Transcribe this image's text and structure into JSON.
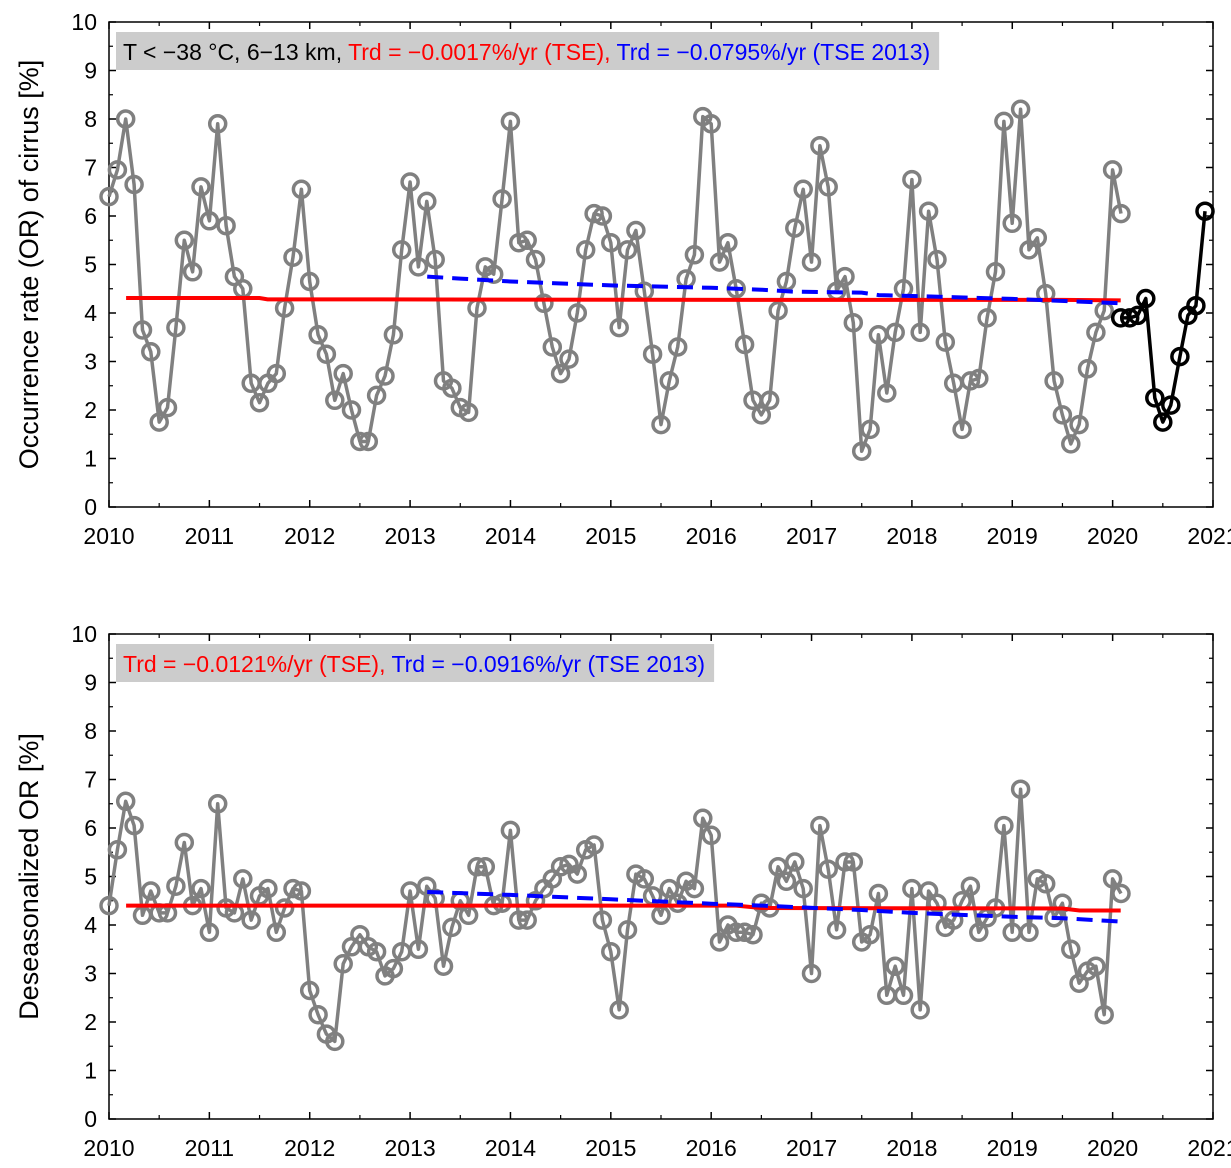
{
  "colors": {
    "observed": "#808080",
    "observed_2020": "#000000",
    "trend_tse": "#ff0000",
    "trend_tse2013": "#0000ff",
    "annotation_box": "#cccccc"
  },
  "chart_data": [
    {
      "type": "line",
      "ylabel": "Occurrence rate (OR) of cirrus [%]",
      "xlim": [
        2010,
        2021
      ],
      "ylim": [
        0,
        10
      ],
      "xticks": [
        "2010",
        "2011",
        "2012",
        "2013",
        "2014",
        "2015",
        "2016",
        "2017",
        "2018",
        "2019",
        "2020",
        "2021"
      ],
      "yticks": [
        "0",
        "1",
        "2",
        "3",
        "4",
        "5",
        "6",
        "7",
        "8",
        "9",
        "10"
      ],
      "annotation": {
        "prefix": "T < −38 °C, 6−13 km,",
        "trend_tse": "Trd = −0.0017%/yr (TSE),",
        "trend_tse2013": "Trd = −0.0795%/yr (TSE 2013)"
      },
      "grid": false,
      "series": [
        {
          "role": "observed",
          "x_start": 2010.0,
          "x_step": 0.08333,
          "values": [
            6.4,
            6.95,
            8.0,
            6.65,
            3.65,
            3.2,
            1.75,
            2.05,
            3.7,
            5.5,
            4.85,
            6.6,
            5.9,
            7.9,
            5.8,
            4.75,
            4.5,
            2.55,
            2.15,
            2.55,
            2.75,
            4.1,
            5.15,
            6.55,
            4.65,
            3.55,
            3.15,
            2.2,
            2.75,
            2.0,
            1.35,
            1.35,
            2.3,
            2.7,
            3.55,
            5.3,
            6.7,
            4.95,
            6.3,
            5.1,
            2.6,
            2.45,
            2.05,
            1.95,
            4.1,
            4.95,
            4.8,
            6.35,
            7.95,
            5.45,
            5.5,
            5.1,
            4.2,
            3.3,
            2.75,
            3.05,
            4.0,
            5.3,
            6.05,
            6.0,
            5.45,
            3.7,
            5.3,
            5.7,
            4.45,
            3.15,
            1.7,
            2.6,
            3.3,
            4.7,
            5.2,
            8.05,
            7.9,
            5.05,
            5.45,
            4.5,
            3.35,
            2.2,
            1.9,
            2.2,
            4.05,
            4.65,
            5.75,
            6.55,
            5.05,
            7.45,
            6.6,
            4.45,
            4.75,
            3.8,
            1.15,
            1.6,
            3.55,
            2.35,
            3.6,
            4.5,
            6.75,
            3.6,
            6.1,
            5.1,
            3.4,
            2.55,
            1.6,
            2.6,
            2.65,
            3.9,
            4.85,
            7.95,
            5.85,
            8.2,
            5.3,
            5.55,
            4.4,
            2.6,
            1.9,
            1.3,
            1.7,
            2.85,
            3.6,
            4.05,
            6.95,
            6.05
          ]
        },
        {
          "role": "observed_2020",
          "x": [
            2020.08,
            2020.17,
            2020.25,
            2020.33,
            2020.42,
            2020.5,
            2020.58,
            2020.67,
            2020.75,
            2020.83,
            2020.92
          ],
          "values": [
            3.9,
            3.9,
            3.95,
            4.3,
            2.25,
            1.75,
            2.1,
            3.1,
            3.95,
            4.15,
            6.1
          ]
        },
        {
          "role": "trend_tse",
          "x": [
            2010.17,
            2011.5,
            2011.58,
            2012.5,
            2017.0,
            2019.5,
            2020.08
          ],
          "values": [
            4.31,
            4.31,
            4.28,
            4.28,
            4.27,
            4.27,
            4.26
          ]
        },
        {
          "role": "trend_tse2013",
          "x": [
            2013.17,
            2013.5,
            2014.0,
            2015.0,
            2016.0,
            2016.5,
            2016.83,
            2017.5,
            2017.67,
            2018.0,
            2019.0,
            2020.08
          ],
          "values": [
            4.75,
            4.71,
            4.65,
            4.57,
            4.52,
            4.48,
            4.44,
            4.42,
            4.37,
            4.35,
            4.29,
            4.2
          ]
        }
      ]
    },
    {
      "type": "line",
      "ylabel": "Deseasonalized OR [%]",
      "xlim": [
        2010,
        2021
      ],
      "ylim": [
        0,
        10
      ],
      "xticks": [
        "2010",
        "2011",
        "2012",
        "2013",
        "2014",
        "2015",
        "2016",
        "2017",
        "2018",
        "2019",
        "2020",
        "2021"
      ],
      "yticks": [
        "0",
        "1",
        "2",
        "3",
        "4",
        "5",
        "6",
        "7",
        "8",
        "9",
        "10"
      ],
      "annotation": {
        "prefix": "",
        "trend_tse": "Trd = −0.0121%/yr (TSE),",
        "trend_tse2013": "Trd = −0.0916%/yr (TSE 2013)"
      },
      "grid": false,
      "series": [
        {
          "role": "observed",
          "x_start": 2010.0,
          "x_step": 0.08333,
          "values": [
            4.4,
            5.55,
            6.55,
            6.05,
            4.2,
            4.7,
            4.25,
            4.25,
            4.8,
            5.7,
            4.4,
            4.75,
            3.85,
            6.5,
            4.35,
            4.25,
            4.95,
            4.1,
            4.6,
            4.75,
            3.85,
            4.35,
            4.75,
            4.7,
            2.65,
            2.15,
            1.75,
            1.6,
            3.2,
            3.55,
            3.8,
            3.55,
            3.45,
            2.95,
            3.1,
            3.45,
            4.7,
            3.5,
            4.8,
            4.55,
            3.15,
            3.95,
            4.5,
            4.2,
            5.2,
            5.2,
            4.4,
            4.45,
            5.95,
            4.1,
            4.1,
            4.5,
            4.75,
            4.95,
            5.2,
            5.25,
            5.05,
            5.55,
            5.65,
            4.1,
            3.45,
            2.25,
            3.9,
            5.05,
            4.95,
            4.6,
            4.2,
            4.75,
            4.45,
            4.9,
            4.75,
            6.2,
            5.85,
            3.65,
            4.0,
            3.85,
            3.85,
            3.8,
            4.45,
            4.35,
            5.2,
            4.9,
            5.3,
            4.75,
            3.0,
            6.05,
            5.15,
            3.9,
            5.3,
            5.3,
            3.65,
            3.8,
            4.65,
            2.55,
            3.15,
            2.55,
            4.75,
            2.25,
            4.7,
            4.45,
            3.95,
            4.1,
            4.5,
            4.8,
            3.85,
            4.15,
            4.35,
            6.05,
            3.85,
            6.8,
            3.85,
            4.95,
            4.85,
            4.15,
            4.45,
            3.5,
            2.8,
            3.05,
            3.15,
            2.15,
            4.95,
            4.65
          ]
        },
        {
          "role": "trend_tse",
          "x": [
            2010.17,
            2016.25,
            2016.5,
            2019.5,
            2019.67,
            2020.08
          ],
          "values": [
            4.4,
            4.4,
            4.35,
            4.34,
            4.3,
            4.3
          ]
        },
        {
          "role": "trend_tse2013",
          "x": [
            2013.17,
            2014.0,
            2015.0,
            2016.0,
            2016.5,
            2017.5,
            2018.0,
            2019.0,
            2019.5,
            2020.08
          ],
          "values": [
            4.68,
            4.62,
            4.53,
            4.44,
            4.4,
            4.31,
            4.25,
            4.17,
            4.14,
            4.07
          ]
        }
      ]
    }
  ]
}
